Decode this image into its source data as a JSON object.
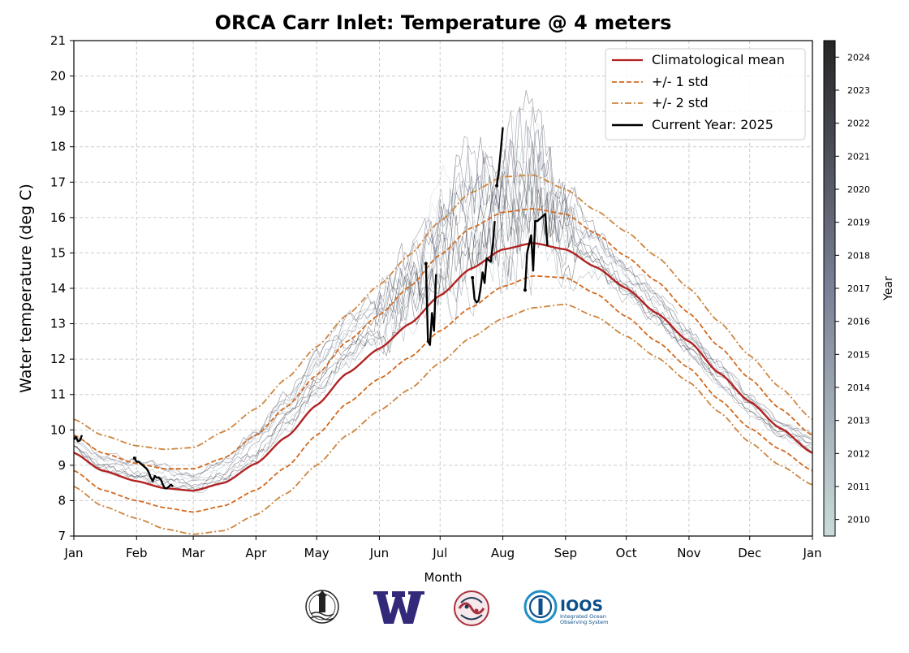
{
  "page": {
    "title": "ORCA Carr Inlet: Temperature @ 4 meters",
    "xlabel": "Month",
    "ylabel": "Water temperature (deg C)",
    "colorbar_label": "Year"
  },
  "chart_data": {
    "type": "line",
    "title": "ORCA Carr Inlet: Temperature @ 4 meters",
    "xlabel": "Month",
    "ylabel": "Water temperature (deg C)",
    "x_unit": "day of year",
    "xlim": [
      1,
      366
    ],
    "ylim": [
      7,
      21
    ],
    "grid": true,
    "legend_placement": "top-right",
    "x_ticks": [
      {
        "label": "Jan",
        "day": 1
      },
      {
        "label": "Feb",
        "day": 32
      },
      {
        "label": "Mar",
        "day": 60
      },
      {
        "label": "Apr",
        "day": 91
      },
      {
        "label": "May",
        "day": 121
      },
      {
        "label": "Jun",
        "day": 152
      },
      {
        "label": "Jul",
        "day": 182
      },
      {
        "label": "Aug",
        "day": 213
      },
      {
        "label": "Sep",
        "day": 244
      },
      {
        "label": "Oct",
        "day": 274
      },
      {
        "label": "Nov",
        "day": 305
      },
      {
        "label": "Dec",
        "day": 335
      },
      {
        "label": "Jan",
        "day": 366
      }
    ],
    "y_ticks": [
      7,
      8,
      9,
      10,
      11,
      12,
      13,
      14,
      15,
      16,
      17,
      18,
      19,
      20,
      21
    ],
    "colorbar": {
      "label": "Year",
      "ticks": [
        "2010",
        "2011",
        "2012",
        "2013",
        "2014",
        "2015",
        "2016",
        "2017",
        "2018",
        "2019",
        "2020",
        "2021",
        "2022",
        "2023",
        "2024"
      ],
      "color_start": "#c9dcd9",
      "color_mid": "#7a8096",
      "color_end": "#262626"
    },
    "climatology": {
      "days": [
        1,
        15,
        32,
        46,
        60,
        75,
        91,
        106,
        121,
        136,
        152,
        167,
        182,
        197,
        213,
        228,
        244,
        259,
        274,
        289,
        305,
        320,
        335,
        350,
        366
      ],
      "mean": [
        9.35,
        8.85,
        8.55,
        8.35,
        8.28,
        8.5,
        9.05,
        9.8,
        10.7,
        11.6,
        12.3,
        13.0,
        13.8,
        14.55,
        15.1,
        15.28,
        15.1,
        14.6,
        14.0,
        13.3,
        12.5,
        11.6,
        10.8,
        10.05,
        9.35
      ],
      "std1_upper": [
        9.85,
        9.35,
        9.05,
        8.9,
        8.9,
        9.2,
        9.85,
        10.65,
        11.55,
        12.5,
        13.25,
        14.05,
        14.95,
        15.7,
        16.15,
        16.25,
        16.1,
        15.55,
        14.9,
        14.2,
        13.3,
        12.35,
        11.45,
        10.6,
        9.85
      ],
      "std1_lower": [
        8.85,
        8.3,
        8.0,
        7.8,
        7.68,
        7.85,
        8.3,
        8.95,
        9.85,
        10.75,
        11.45,
        12.05,
        12.8,
        13.45,
        14.05,
        14.35,
        14.3,
        13.85,
        13.2,
        12.5,
        11.75,
        10.85,
        10.05,
        9.45,
        8.85
      ],
      "std2_upper": [
        10.3,
        9.85,
        9.55,
        9.45,
        9.5,
        9.95,
        10.6,
        11.45,
        12.35,
        13.25,
        14.1,
        14.95,
        15.9,
        16.7,
        17.15,
        17.2,
        16.8,
        16.2,
        15.6,
        14.9,
        14.0,
        13.05,
        12.1,
        11.2,
        10.3
      ],
      "std2_lower": [
        8.4,
        7.85,
        7.5,
        7.2,
        7.05,
        7.15,
        7.6,
        8.2,
        9.0,
        9.85,
        10.55,
        11.15,
        11.9,
        12.6,
        13.15,
        13.45,
        13.55,
        13.2,
        12.65,
        12.05,
        11.35,
        10.5,
        9.65,
        9.0,
        8.45
      ]
    },
    "historical_envelope": {
      "days": [
        1,
        15,
        32,
        46,
        60,
        75,
        91,
        106,
        121,
        136,
        152,
        167,
        182,
        197,
        213,
        228,
        244,
        259,
        274,
        289,
        305,
        320,
        335,
        350,
        366
      ],
      "upper": [
        10.1,
        9.6,
        9.5,
        9.3,
        9.0,
        9.5,
        10.5,
        11.6,
        12.8,
        13.8,
        14.5,
        15.5,
        17.4,
        18.6,
        19.0,
        20.2,
        17.6,
        16.4,
        15.3,
        14.4,
        13.3,
        12.3,
        11.3,
        10.5,
        10.1
      ],
      "lower": [
        9.1,
        8.45,
        8.15,
        8.0,
        7.95,
        8.1,
        8.55,
        9.3,
        10.2,
        11.0,
        11.6,
        12.3,
        12.8,
        13.2,
        13.5,
        13.6,
        13.7,
        13.5,
        13.0,
        12.4,
        11.6,
        10.8,
        10.1,
        9.5,
        9.1
      ],
      "line_count": 15
    },
    "series": [
      {
        "name": "Climatological mean",
        "color": "#b22222",
        "style": "solid"
      },
      {
        "name": "+/- 1 std",
        "color": "#d2691e",
        "style": "dashed"
      },
      {
        "name": "+/- 2 std",
        "color": "#cd853f",
        "style": "dashdot"
      },
      {
        "name": "Current Year: 2025",
        "color": "#000000",
        "style": "solid"
      }
    ],
    "current_year": {
      "segments": [
        {
          "days": [
            1,
            2,
            3,
            4,
            5
          ],
          "values": [
            9.75,
            9.8,
            9.68,
            9.7,
            9.85
          ]
        },
        {
          "days": [
            31,
            32,
            33,
            34,
            35,
            36,
            37,
            38,
            39,
            40,
            41,
            42,
            43,
            44,
            45,
            46,
            47,
            48,
            49,
            50
          ],
          "values": [
            9.2,
            9.1,
            9.1,
            9.05,
            9.0,
            8.95,
            8.9,
            8.8,
            8.65,
            8.55,
            8.7,
            8.65,
            8.65,
            8.6,
            8.45,
            8.35,
            8.35,
            8.4,
            8.45,
            8.4
          ]
        },
        {
          "days": [
            175,
            176,
            177,
            178,
            179,
            180
          ],
          "values": [
            14.7,
            12.5,
            12.4,
            13.3,
            12.8,
            14.4
          ]
        },
        {
          "days": [
            198,
            199,
            200,
            201,
            202,
            203,
            204,
            205,
            206,
            207,
            208,
            209
          ],
          "values": [
            14.3,
            13.7,
            13.6,
            13.65,
            14.0,
            14.45,
            14.15,
            14.85,
            14.8,
            14.75,
            15.2,
            15.9
          ]
        },
        {
          "days": [
            210,
            211,
            212,
            213
          ],
          "values": [
            16.9,
            17.3,
            17.9,
            18.55
          ]
        },
        {
          "days": [
            224,
            225,
            226,
            227,
            228,
            229,
            230,
            231,
            232,
            233,
            234,
            235
          ],
          "values": [
            13.95,
            15.0,
            15.25,
            15.5,
            14.5,
            15.9,
            15.9,
            15.95,
            16.0,
            16.05,
            16.1,
            15.2
          ]
        }
      ]
    },
    "logos": [
      {
        "name": "noaa-lighthouse-logo"
      },
      {
        "name": "uw-w-logo"
      },
      {
        "name": "orca-native-art-logo"
      },
      {
        "name": "ioos-logo",
        "text": "IOOS",
        "subtitle_line1": "Integrated Ocean",
        "subtitle_line2": "Observing System"
      }
    ]
  }
}
